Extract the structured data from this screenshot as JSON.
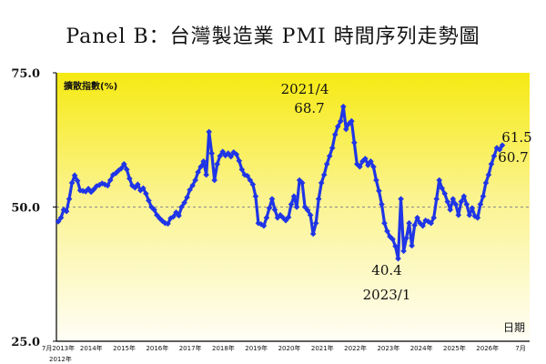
{
  "chart_data": {
    "type": "line",
    "title": "Panel B：台灣製造業 PMI 時間序列走勢圖",
    "ylabel": "擴散指數(%)",
    "xlabel": "日期",
    "ylim": [
      25.0,
      75.0
    ],
    "yticks": [
      "75.0",
      "50.0",
      "25.0"
    ],
    "reference_line": 50.0,
    "x_tick_labels": [
      "7月2013年",
      "2014年",
      "2015年",
      "2016年",
      "2017年",
      "2018年",
      "2019年",
      "2020年",
      "2021年",
      "2022年",
      "2023年",
      "2024年",
      "2025年",
      "2026年",
      "7月"
    ],
    "x_start_label": "2012年",
    "grid": false,
    "background": "yellow gradient",
    "line_color": "#1f35e6",
    "marker": "diamond",
    "annotations": [
      {
        "date_label": "2021/4",
        "value_label": "68.7"
      },
      {
        "date_label": "2023/1",
        "value_label": "40.4"
      },
      {
        "value_label": "61.5"
      },
      {
        "value_label": "60.7"
      }
    ],
    "series": [
      {
        "start": "2012-07",
        "values": [
          47.3,
          48.0,
          49.5,
          49.2,
          51.5,
          54.5,
          55.9,
          54.9,
          53.1,
          53.0,
          52.9,
          53.4,
          52.8,
          53.3,
          53.9,
          54.1,
          54.4,
          54.2,
          54.0,
          55.0,
          56.0,
          56.3,
          56.8,
          57.2,
          58.0,
          57.0,
          55.3,
          54.0,
          53.6,
          54.2,
          53.1,
          53.5,
          52.5,
          51.2,
          50.0,
          49.5,
          48.5,
          47.9,
          47.4,
          47.0,
          46.9,
          47.9,
          48.2,
          49.0,
          48.4,
          50.0,
          50.8,
          51.8,
          53.2,
          54.0,
          55.0,
          56.5,
          57.5,
          58.5,
          56.0,
          64.0,
          60.0,
          55.0,
          58.0,
          59.5,
          60.3,
          59.6,
          60.0,
          59.4,
          60.2,
          59.8,
          58.6,
          57.0,
          56.0,
          55.8,
          55.0,
          54.2,
          52.0,
          47.0,
          46.8,
          46.5,
          48.0,
          49.8,
          51.5,
          49.5,
          48.0,
          48.5,
          48.0,
          47.5,
          48.1,
          50.5,
          52.0,
          50.0,
          55.0,
          54.5,
          50.0,
          49.4,
          48.5,
          45.0,
          47.0,
          51.5,
          54.5,
          56.0,
          58.0,
          59.5,
          61.0,
          63.5,
          65.0,
          66.0,
          68.7,
          64.5,
          65.5,
          66.0,
          62.0,
          58.0,
          57.5,
          58.5,
          59.0,
          57.8,
          58.5,
          57.5,
          55.0,
          53.0,
          50.5,
          47.0,
          45.5,
          44.5,
          44.0,
          42.7,
          40.4,
          51.5,
          41.8,
          44.2,
          47.0,
          42.8,
          46.6,
          48.0,
          47.0,
          46.5,
          47.5,
          47.3,
          47.0,
          48.0,
          51.5,
          55.0,
          53.5,
          52.5,
          51.0,
          49.5,
          51.5,
          50.5,
          48.5,
          51.0,
          52.0,
          50.5,
          48.5,
          49.8,
          48.3,
          48.0,
          50.5,
          52.0,
          54.5,
          56.0,
          58.0,
          59.5,
          61.0,
          60.7,
          61.5
        ]
      }
    ]
  }
}
